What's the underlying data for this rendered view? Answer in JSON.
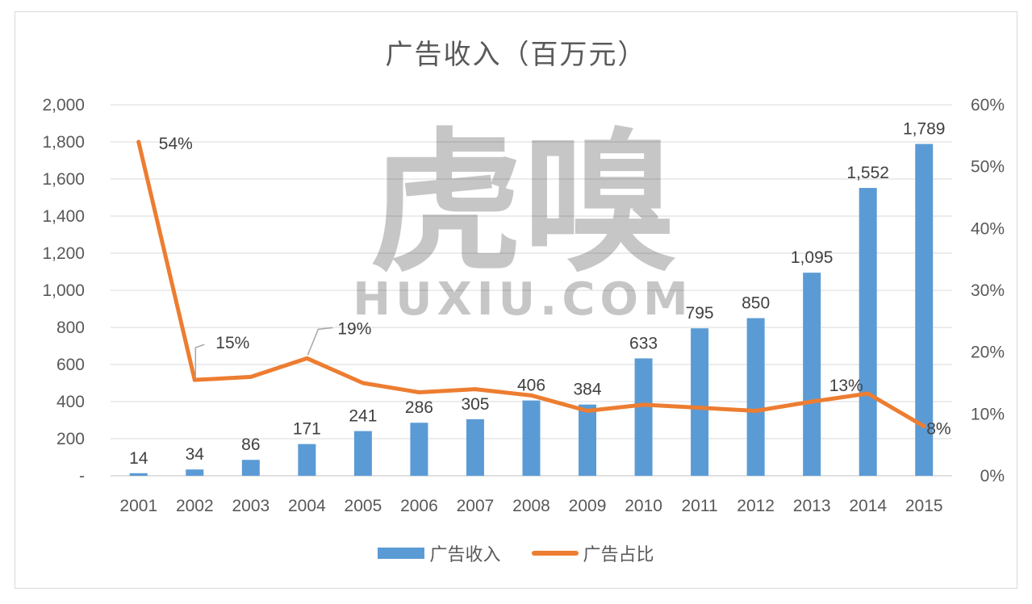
{
  "chart_data": {
    "type": "bar+line",
    "title": "广告收入（百万元）",
    "categories": [
      "2001",
      "2002",
      "2003",
      "2004",
      "2005",
      "2006",
      "2007",
      "2008",
      "2009",
      "2010",
      "2011",
      "2012",
      "2013",
      "2014",
      "2015"
    ],
    "series": [
      {
        "name": "广告收入",
        "type": "bar",
        "axis": "left",
        "color": "#5b9bd5",
        "values": [
          14,
          34,
          86,
          171,
          241,
          286,
          305,
          406,
          384,
          633,
          795,
          850,
          1095,
          1552,
          1789
        ],
        "labels": [
          "14",
          "34",
          "86",
          "171",
          "241",
          "286",
          "305",
          "406",
          "384",
          "633",
          "795",
          "850",
          "1,095",
          "1,552",
          "1,789"
        ]
      },
      {
        "name": "广告占比",
        "type": "line",
        "axis": "right",
        "color": "#ed7d31",
        "values": [
          54,
          15.5,
          16,
          19,
          15,
          13.5,
          14,
          13,
          10.5,
          11.5,
          11,
          10.5,
          12,
          13.3,
          8
        ],
        "labels": [
          "54%",
          "15%",
          "",
          "19%",
          "",
          "",
          "",
          "",
          "",
          "",
          "",
          "",
          "",
          "13%",
          "8%"
        ]
      }
    ],
    "y_left": {
      "ylim": [
        0,
        2000
      ],
      "ticks": [
        "-",
        "200",
        "400",
        "600",
        "800",
        "1,000",
        "1,200",
        "1,400",
        "1,600",
        "1,800",
        "2,000"
      ]
    },
    "y_right": {
      "ylim": [
        0,
        60
      ],
      "ticks": [
        "0%",
        "10%",
        "20%",
        "30%",
        "40%",
        "50%",
        "60%"
      ]
    },
    "grid": true,
    "legend_position": "bottom"
  },
  "watermark": {
    "main": "虎嗅",
    "sub": "HUXIU.COM"
  }
}
